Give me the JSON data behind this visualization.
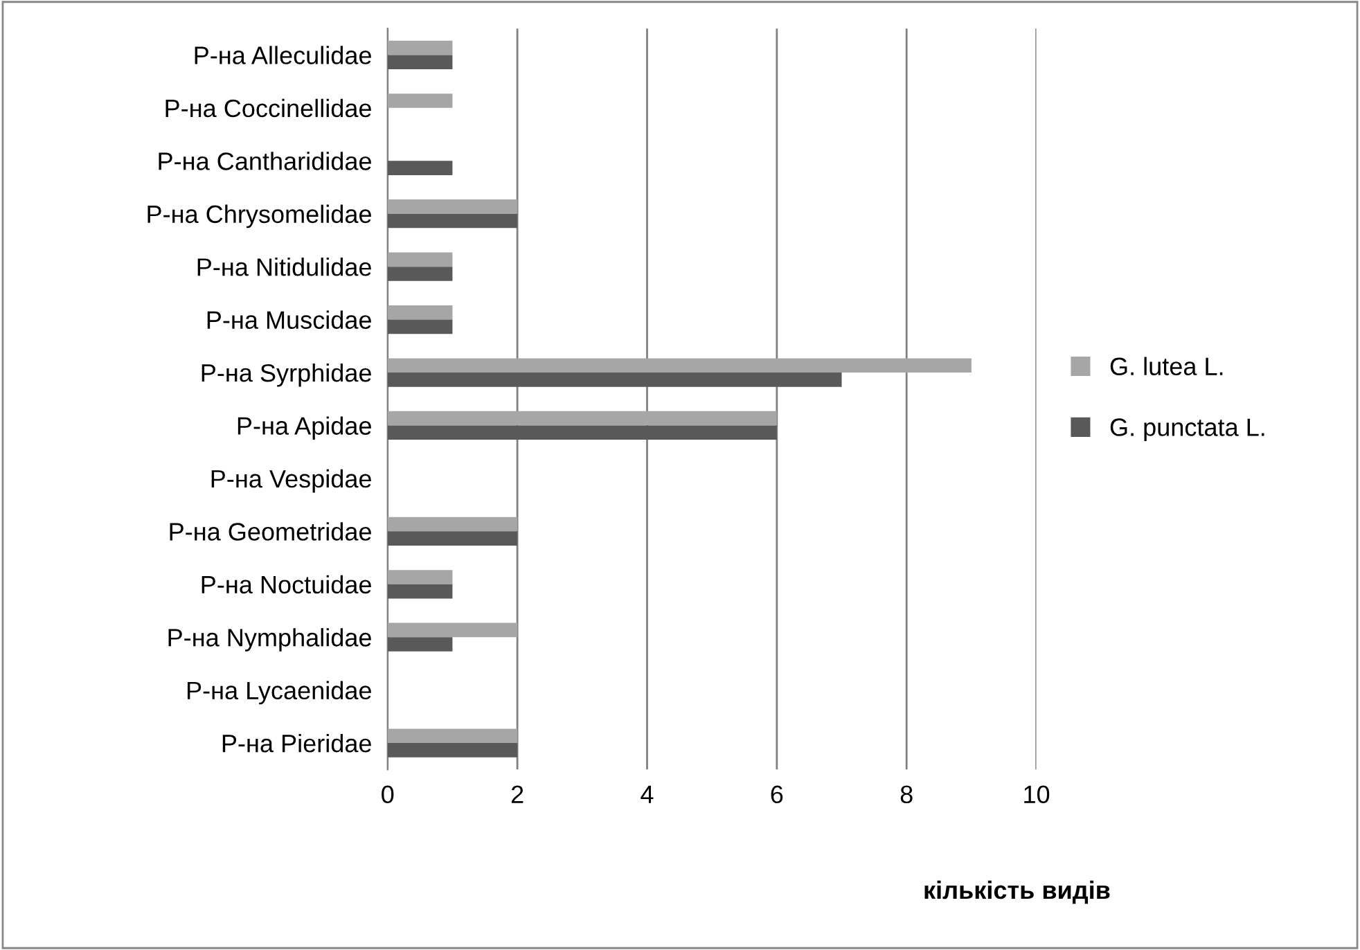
{
  "chart_data": {
    "type": "bar",
    "orientation": "horizontal",
    "xlabel": "кількість видів",
    "categories": [
      "Р-на Alleculidae",
      "Р-на Coccinellidae",
      "Р-на Cantharididae",
      "Р-на Chrysomelidae",
      "Р-на Nitidulidae",
      "Р-на Muscidae",
      "Р-на Syrphidae",
      "Р-на Apidae",
      "Р-на Vespidae",
      "Р-на Geometridae",
      "Р-на Noctuidae",
      "Р-на Nymphalidae",
      "Р-на Lycaenidae",
      "Р-на Pieridae"
    ],
    "series": [
      {
        "name": "G. lutea L.",
        "color": "#a6a6a6",
        "values": [
          1,
          1,
          0,
          2,
          1,
          1,
          9,
          6,
          0,
          2,
          1,
          2,
          0,
          2
        ]
      },
      {
        "name": "G. punctata L.",
        "color": "#595959",
        "values": [
          1,
          0,
          1,
          2,
          1,
          1,
          7,
          6,
          0,
          2,
          1,
          1,
          0,
          2
        ]
      }
    ],
    "xlim": [
      0,
      10
    ],
    "xticks": [
      0,
      2,
      4,
      6,
      8,
      10
    ],
    "grid": "x",
    "legend": "right"
  }
}
